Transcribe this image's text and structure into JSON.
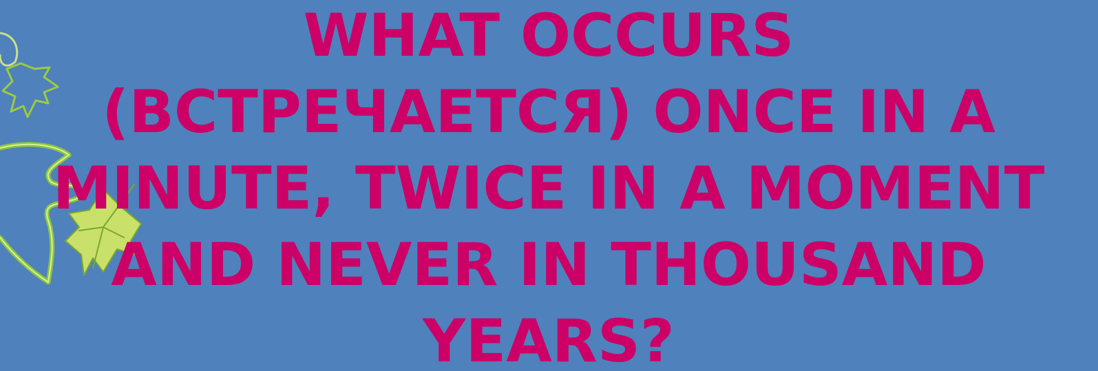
{
  "slide": {
    "title_lines": [
      "WHAT OCCURS",
      "(ВСТРЕЧАЕТСЯ) ONCE IN A",
      "MINUTE, TWICE IN A MOMENT",
      "AND NEVER IN THOUSAND",
      "YEARS?"
    ]
  }
}
